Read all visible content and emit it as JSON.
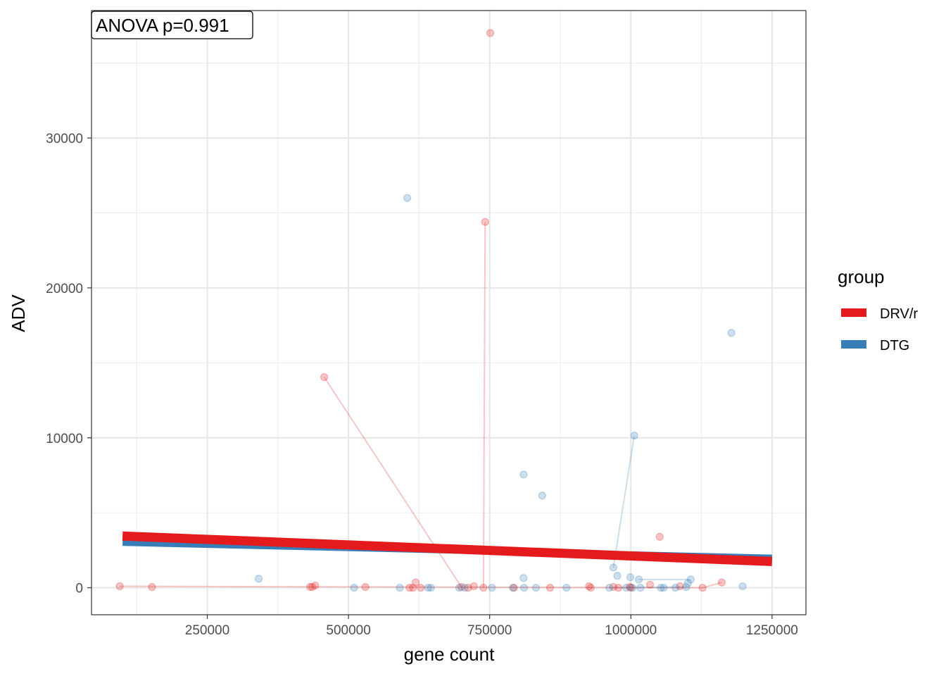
{
  "chart_data": {
    "type": "scatter",
    "xlabel": "gene count",
    "ylabel": "ADV",
    "xlim": [
      45000,
      1310000
    ],
    "ylim": [
      -1800,
      38500
    ],
    "x_ticks": [
      250000,
      500000,
      750000,
      1000000,
      1250000
    ],
    "x_tick_labels": [
      "250000",
      "500000",
      "750000",
      "1000000",
      "1250000"
    ],
    "y_ticks": [
      0,
      10000,
      20000,
      30000
    ],
    "y_tick_labels": [
      "0",
      "10000",
      "20000",
      "30000"
    ],
    "grid": true,
    "annotation": "ANOVA p=0.991",
    "legend": {
      "title": "group",
      "placement": "right",
      "entries": [
        {
          "label": "DRV/r",
          "color": "#E41A1C"
        },
        {
          "label": "DTG",
          "color": "#377EB8"
        }
      ]
    },
    "series": [
      {
        "name": "DRV/r",
        "color": "#E41A1C",
        "points": [
          [
            95000,
            100
          ],
          [
            152000,
            50
          ],
          [
            432000,
            50
          ],
          [
            436000,
            50
          ],
          [
            441000,
            150
          ],
          [
            457000,
            14050
          ],
          [
            530000,
            50
          ],
          [
            608000,
            0
          ],
          [
            614000,
            0
          ],
          [
            619000,
            350
          ],
          [
            628000,
            0
          ],
          [
            700000,
            50
          ],
          [
            712000,
            0
          ],
          [
            722000,
            100
          ],
          [
            739000,
            0
          ],
          [
            742000,
            24400
          ],
          [
            751000,
            37000
          ],
          [
            793000,
            0
          ],
          [
            857000,
            0
          ],
          [
            926000,
            100
          ],
          [
            929000,
            0
          ],
          [
            969000,
            50
          ],
          [
            978000,
            0
          ],
          [
            998000,
            50
          ],
          [
            1000000,
            0
          ],
          [
            1034000,
            200
          ],
          [
            1051000,
            3400
          ],
          [
            1087000,
            100
          ],
          [
            1127000,
            0
          ],
          [
            1161000,
            350
          ]
        ],
        "connections": [
          [
            [
              95000,
              100
            ],
            [
              1127000,
              0
            ]
          ],
          [
            [
              457000,
              14050
            ],
            [
              700000,
              50
            ]
          ],
          [
            [
              739000,
              0
            ],
            [
              742000,
              24400
            ]
          ],
          [
            [
              1127000,
              0
            ],
            [
              1161000,
              350
            ]
          ]
        ],
        "trend": {
          "x": [
            100000,
            1250000
          ],
          "y": [
            3450,
            1750
          ]
        }
      },
      {
        "name": "DTG",
        "color": "#377EB8",
        "points": [
          [
            341000,
            600
          ],
          [
            510000,
            0
          ],
          [
            591000,
            0
          ],
          [
            604000,
            26000
          ],
          [
            641000,
            0
          ],
          [
            646000,
            0
          ],
          [
            696000,
            0
          ],
          [
            706000,
            0
          ],
          [
            754000,
            0
          ],
          [
            791000,
            0
          ],
          [
            810000,
            7550
          ],
          [
            810000,
            650
          ],
          [
            811000,
            0
          ],
          [
            832000,
            0
          ],
          [
            843000,
            6150
          ],
          [
            886000,
            0
          ],
          [
            962000,
            0
          ],
          [
            969000,
            1350
          ],
          [
            976000,
            800
          ],
          [
            992000,
            0
          ],
          [
            999000,
            700
          ],
          [
            1003000,
            0
          ],
          [
            1006000,
            10150
          ],
          [
            1014000,
            550
          ],
          [
            1017000,
            0
          ],
          [
            1053000,
            0
          ],
          [
            1058000,
            0
          ],
          [
            1079000,
            0
          ],
          [
            1098000,
            50
          ],
          [
            1101000,
            300
          ],
          [
            1106000,
            550
          ],
          [
            1178000,
            17000
          ],
          [
            1198000,
            100
          ]
        ],
        "connections": [
          [
            [
              969000,
              1350
            ],
            [
              1006000,
              10150
            ]
          ],
          [
            [
              1014000,
              550
            ],
            [
              1106000,
              550
            ]
          ],
          [
            [
              962000,
              0
            ],
            [
              1098000,
              50
            ]
          ]
        ],
        "trend": {
          "x": [
            100000,
            1250000
          ],
          "y": [
            3000,
            2000
          ]
        }
      }
    ]
  }
}
